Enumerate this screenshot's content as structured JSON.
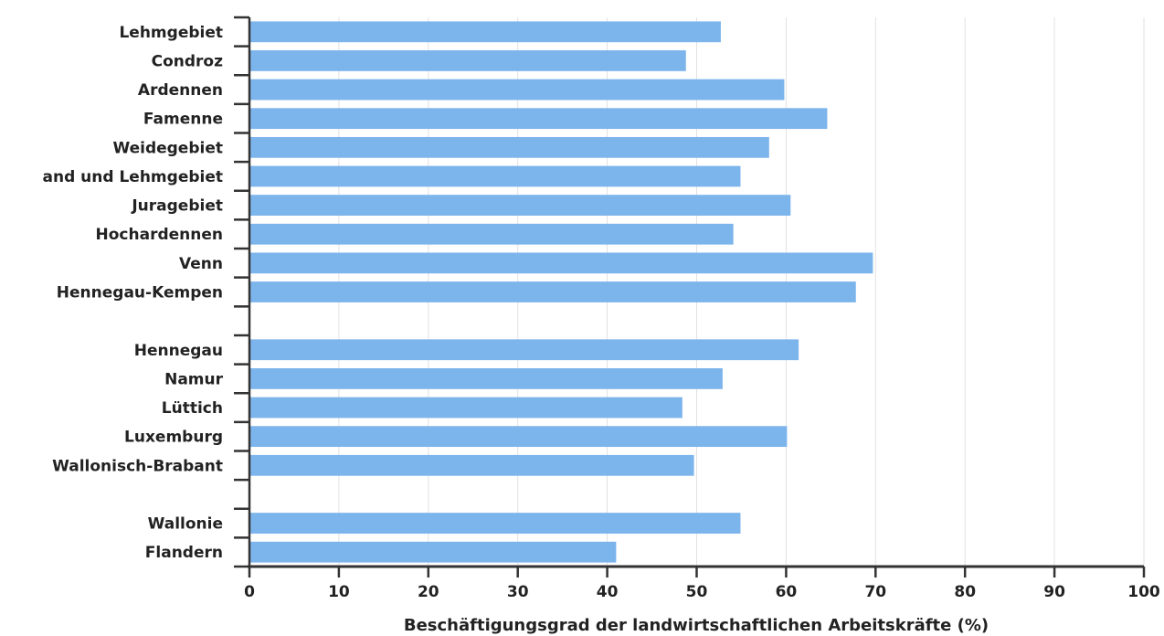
{
  "chart_data": {
    "type": "bar",
    "orientation": "horizontal",
    "categories": [
      "Lehmgebiet",
      "Condroz",
      "Ardennen",
      "Famenne",
      "Weidegebiet",
      "and und Lehmgebiet",
      "Juragebiet",
      "Hochardennen",
      "Venn",
      "Hennegau-Kempen",
      "",
      "Hennegau",
      "Namur",
      "Lüttich",
      "Luxemburg",
      "Wallonisch-Brabant",
      "",
      "Wallonie",
      "Flandern"
    ],
    "values": [
      52.7,
      48.8,
      59.8,
      64.6,
      58.1,
      54.9,
      60.5,
      54.1,
      69.7,
      67.8,
      null,
      61.4,
      52.9,
      48.4,
      60.1,
      49.7,
      null,
      54.9,
      41.0
    ],
    "xlabel": "Beschäftigungsgrad der landwirtschaftlichen Arbeitskräfte (%)",
    "ylabel": "",
    "xlim": [
      0,
      100
    ],
    "xticks": [
      0,
      10,
      20,
      30,
      40,
      50,
      60,
      70,
      80,
      90,
      100
    ],
    "grid": "vertical",
    "bar_color": "#7cb4ec",
    "axis_color": "#333333",
    "grid_color": "#e2e2e2"
  }
}
